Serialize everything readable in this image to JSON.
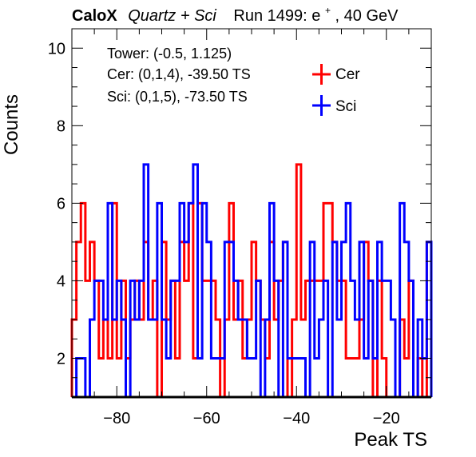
{
  "chart_data": {
    "type": "histogram-step",
    "title_parts": {
      "bold": "CaloX",
      "italic": "Quartz + Sci",
      "run": "Run 1499: e",
      "sup": "+",
      "energy": ", 40 GeV"
    },
    "xlabel": "Peak TS",
    "ylabel": "Counts",
    "xlim": [
      -90,
      -10
    ],
    "ylim": [
      1,
      10.5
    ],
    "x_ticks": [
      -80,
      -60,
      -40,
      -20
    ],
    "x_tick_labels": [
      "−80",
      "−60",
      "−40",
      "−20"
    ],
    "y_ticks": [
      2,
      4,
      6,
      8,
      10
    ],
    "y_tick_labels": [
      "2",
      "4",
      "6",
      "8",
      "10"
    ],
    "annotations": [
      "Tower: (-0.5, 1.125)",
      "Cer: (0,1,4), -39.50 TS",
      "Sci: (0,1,5), -73.50 TS"
    ],
    "legend_position": "top-right",
    "bin_width": 1,
    "series": [
      {
        "name": "Cer",
        "color": "#ff0000",
        "values": [
          3,
          5,
          6,
          4,
          5,
          4,
          2,
          3,
          2,
          6,
          2,
          4,
          2,
          3,
          4,
          3,
          5,
          3,
          4,
          1,
          5,
          3,
          4,
          2,
          5,
          4,
          6,
          2,
          6,
          4,
          4,
          4,
          3,
          1,
          3,
          6,
          3,
          4,
          2,
          3,
          5,
          4,
          3,
          2,
          5,
          3,
          4,
          5,
          1,
          3,
          7,
          3,
          4,
          4,
          4,
          4,
          6,
          6,
          5,
          4,
          4,
          2,
          2,
          2,
          3,
          5,
          4,
          1,
          4,
          2,
          1,
          1,
          1,
          3,
          2,
          4,
          1,
          2,
          1,
          5
        ]
      },
      {
        "name": "Sci",
        "color": "#0000ff",
        "values": [
          1,
          2,
          2,
          1,
          3,
          4,
          4,
          3,
          6,
          3,
          4,
          3,
          1,
          4,
          3,
          4,
          7,
          3,
          3,
          6,
          3,
          2,
          4,
          4,
          6,
          5,
          6,
          7,
          2,
          6,
          5,
          2,
          2,
          2,
          5,
          5,
          4,
          3,
          3,
          2,
          2,
          4,
          1,
          3,
          6,
          4,
          1,
          5,
          2,
          2,
          2,
          2,
          1,
          5,
          2,
          3,
          4,
          1,
          5,
          3,
          5,
          6,
          4,
          3,
          5,
          2,
          4,
          2,
          5,
          4,
          4,
          3,
          1,
          6,
          5,
          4,
          1,
          3,
          2,
          5
        ]
      }
    ]
  }
}
